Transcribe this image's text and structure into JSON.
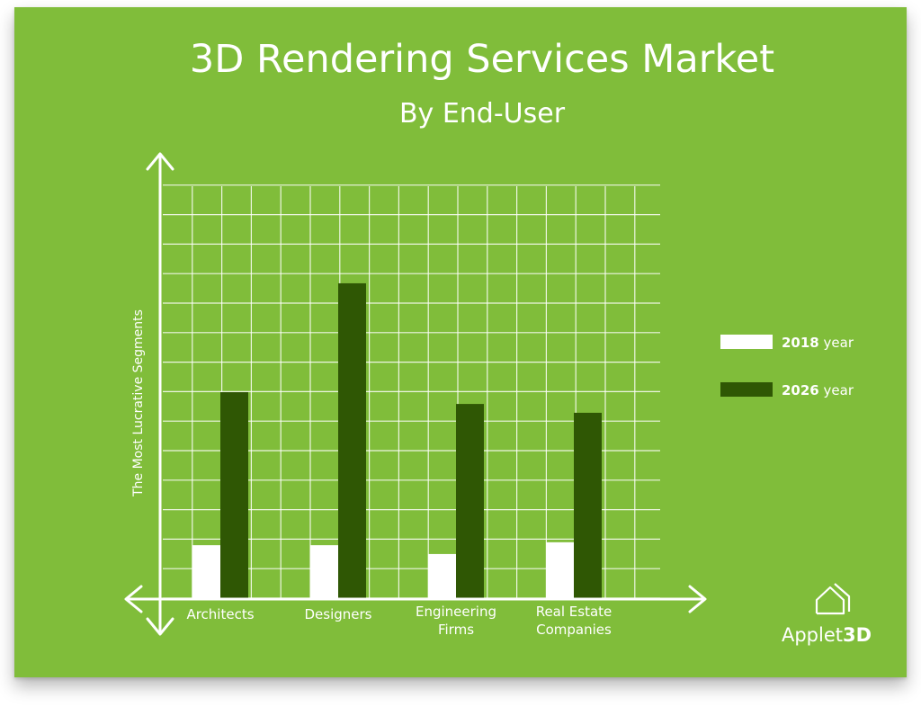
{
  "chart_data": {
    "type": "bar",
    "title": "3D Rendering Services Market",
    "subtitle": "By End-User",
    "ylabel": "The Most Lucrative Segments",
    "xlabel": "",
    "categories": [
      [
        "Architects"
      ],
      [
        "Designers"
      ],
      [
        "Engineering",
        "Firms"
      ],
      [
        "Real Estate",
        "Companies"
      ]
    ],
    "series": [
      {
        "name": "2018",
        "color": "#ffffff",
        "values": [
          1.8,
          1.8,
          1.5,
          1.9
        ]
      },
      {
        "name": "2026",
        "color": "#2f5704",
        "values": [
          7.0,
          10.7,
          6.6,
          6.3
        ]
      }
    ],
    "ylim": [
      0,
      14
    ],
    "grid": true,
    "legend_position": "right",
    "legend_suffix": "year",
    "colors": {
      "background": "#80bd3a",
      "axis": "#ffffff",
      "grid": "#ffffff"
    }
  },
  "brand": {
    "name_plain": "Applet",
    "name_bold": "3D",
    "icon": "house-outline-icon"
  }
}
